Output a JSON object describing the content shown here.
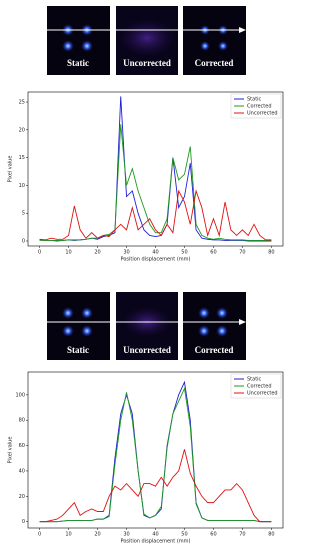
{
  "panels": {
    "top": [
      "Static",
      "Uncorrected",
      "Corrected"
    ],
    "bottom": [
      "Static",
      "Uncorrected",
      "Corrected"
    ]
  },
  "chart_data": [
    {
      "type": "line",
      "xlabel": "Position displacement (mm)",
      "ylabel": "Pixel value",
      "x": [
        0,
        2,
        4,
        6,
        8,
        10,
        12,
        14,
        16,
        18,
        20,
        22,
        24,
        26,
        28,
        30,
        32,
        34,
        36,
        38,
        40,
        42,
        44,
        46,
        48,
        50,
        52,
        54,
        56,
        58,
        60,
        62,
        64,
        66,
        68,
        70,
        72,
        74,
        76,
        78,
        80
      ],
      "xlim": [
        -4,
        84
      ],
      "xticks": [
        0,
        10,
        20,
        30,
        40,
        50,
        60,
        70,
        80
      ],
      "ylim": [
        -0.9,
        26.8
      ],
      "yticks": [
        0,
        5,
        10,
        15,
        20,
        25
      ],
      "legend": "upper right",
      "series": [
        {
          "name": "Static",
          "color": "#1f1fd6",
          "values": [
            0.2,
            0.1,
            0.1,
            0,
            0.1,
            0.2,
            0.1,
            0.2,
            0.3,
            0.5,
            0.3,
            0.8,
            1,
            1.5,
            26,
            8,
            9,
            5,
            2,
            1,
            0.8,
            1,
            3,
            15,
            6,
            8,
            14,
            2,
            0.5,
            0.3,
            0.2,
            0.2,
            0.1,
            0.1,
            0.1,
            0.1,
            0,
            0,
            0,
            0,
            0
          ]
        },
        {
          "name": "Corrected",
          "color": "#1f9a1f",
          "values": [
            0.1,
            0.1,
            0.1,
            0.1,
            0.1,
            0.2,
            0.2,
            0.2,
            0.3,
            0.5,
            0.5,
            1,
            1.2,
            2,
            21,
            10,
            13,
            9,
            6,
            3,
            1.5,
            1.5,
            4,
            15,
            11,
            12,
            17,
            3,
            1,
            0.5,
            0.3,
            0.5,
            0.3,
            0.2,
            0.2,
            0.2,
            0.1,
            0.1,
            0.1,
            0.1,
            0.1
          ]
        },
        {
          "name": "Uncorrected",
          "color": "#e01010",
          "values": [
            0.3,
            0.2,
            0.5,
            0.3,
            0.3,
            1,
            6.3,
            2,
            0.5,
            1.5,
            0.5,
            1,
            0.8,
            2,
            3,
            2,
            6,
            2,
            3,
            4,
            2,
            1,
            3,
            1.5,
            9,
            7,
            3,
            9,
            6,
            1,
            4,
            1,
            7,
            2,
            1,
            2,
            1,
            3,
            1,
            0.2,
            0.2
          ]
        }
      ]
    },
    {
      "type": "line",
      "xlabel": "Position displacement (mm)",
      "ylabel": "Pixel value",
      "x": [
        0,
        2,
        4,
        6,
        8,
        10,
        12,
        14,
        16,
        18,
        20,
        22,
        24,
        26,
        28,
        30,
        32,
        34,
        36,
        38,
        40,
        42,
        44,
        46,
        48,
        50,
        52,
        54,
        56,
        58,
        60,
        62,
        64,
        66,
        68,
        70,
        72,
        74,
        76,
        78,
        80
      ],
      "xlim": [
        -4,
        84
      ],
      "xticks": [
        0,
        10,
        20,
        30,
        40,
        50,
        60,
        70,
        80
      ],
      "ylim": [
        -5,
        118
      ],
      "yticks": [
        0,
        20,
        40,
        60,
        80,
        100
      ],
      "legend": "upper right",
      "series": [
        {
          "name": "Static",
          "color": "#1f1fd6",
          "values": [
            0,
            0,
            0,
            0,
            0.5,
            1,
            1,
            1,
            1,
            1,
            2,
            2,
            5,
            50,
            85,
            100,
            85,
            40,
            5,
            3,
            5,
            10,
            60,
            85,
            100,
            110,
            80,
            15,
            3,
            1,
            1,
            1,
            1,
            1,
            1,
            1,
            1,
            1,
            0,
            0,
            0
          ]
        },
        {
          "name": "Corrected",
          "color": "#1f9a1f",
          "values": [
            0,
            0,
            0,
            0,
            0.5,
            1,
            1,
            1,
            1,
            1,
            2,
            2,
            4,
            45,
            80,
            102,
            80,
            40,
            6,
            3,
            5,
            12,
            58,
            85,
            95,
            105,
            75,
            14,
            3,
            1,
            1,
            1,
            1,
            1,
            1,
            1,
            1,
            1,
            0,
            0,
            0
          ]
        },
        {
          "name": "Uncorrected",
          "color": "#e01010",
          "values": [
            0,
            0,
            1,
            2,
            5,
            10,
            15,
            5,
            8,
            10,
            8,
            8,
            20,
            28,
            25,
            30,
            25,
            20,
            30,
            30,
            28,
            35,
            28,
            35,
            40,
            57,
            38,
            28,
            20,
            15,
            15,
            20,
            25,
            25,
            30,
            25,
            15,
            5,
            0,
            0,
            0
          ]
        }
      ]
    }
  ]
}
